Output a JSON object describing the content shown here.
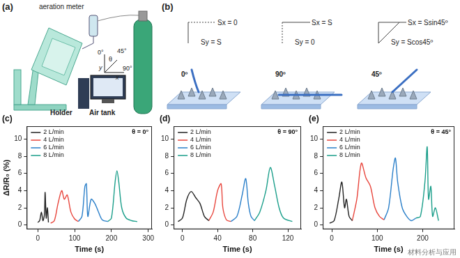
{
  "panel_a": {
    "label": "(a)",
    "aeration_meter": "aeration meter",
    "angle_0": "0°",
    "theta": "θ",
    "angle_45": "45°",
    "angle_90": "90°",
    "axis_y": "y",
    "axis_x": "x",
    "holder": "Holder",
    "air_tank": "Air tank"
  },
  "panel_b": {
    "label": "(b)",
    "columns": [
      {
        "sx": "Sx = 0",
        "sy": "Sy = S",
        "angle": "0º"
      },
      {
        "sx": "Sx = S",
        "sy": "Sy = 0",
        "angle": "90º"
      },
      {
        "sx": "Sx = Ssin45º",
        "sy": "Sy = Scos45º",
        "angle": "45º"
      }
    ]
  },
  "watermark": "材料分析与应用",
  "chart_data": [
    {
      "type": "line",
      "title": "(c)",
      "annotations": [
        "θ = 0°"
      ],
      "x_label": "Time (s)",
      "y_label": "ΔR/R₀ (%)",
      "xlim": [
        -30,
        310
      ],
      "xticks": [
        0,
        100,
        200,
        300
      ],
      "ylim": [
        -0.5,
        11.5
      ],
      "yticks": [
        0,
        2,
        4,
        6,
        8,
        10
      ],
      "grid": false,
      "legend": "upper left",
      "series": [
        {
          "name": "2 L/min",
          "color": "#222222",
          "x": [
            0,
            5,
            10,
            14,
            18,
            20,
            23,
            26,
            29
          ],
          "values": [
            0.3,
            0.5,
            1.5,
            0.5,
            1.2,
            3.8,
            0.8,
            2.0,
            0.3
          ]
        },
        {
          "name": "4 L/min",
          "color": "#e8453c",
          "x": [
            35,
            45,
            55,
            65,
            72,
            80,
            90,
            100,
            110
          ],
          "values": [
            0.2,
            0.5,
            2.5,
            4.0,
            3.0,
            3.5,
            1.5,
            0.7,
            0.4
          ]
        },
        {
          "name": "6 L/min",
          "color": "#2a7fc9",
          "x": [
            110,
            120,
            128,
            132,
            136,
            145,
            155,
            165,
            175,
            190
          ],
          "values": [
            0.4,
            1.0,
            4.5,
            4.8,
            1.0,
            3.0,
            2.5,
            1.5,
            0.6,
            0.4
          ]
        },
        {
          "name": "8 L/min",
          "color": "#1a9e8a",
          "x": [
            190,
            200,
            210,
            215,
            220,
            228,
            240,
            255,
            270
          ],
          "values": [
            0.4,
            0.8,
            5.0,
            6.3,
            5.0,
            2.0,
            0.8,
            0.5,
            0.4
          ]
        }
      ]
    },
    {
      "type": "line",
      "title": "(d)",
      "annotations": [
        "θ = 90°"
      ],
      "x_label": "Time (s)",
      "xlim": [
        -10,
        135
      ],
      "xticks": [
        0,
        40,
        80,
        120
      ],
      "ylim": [
        -0.5,
        11.5
      ],
      "yticks": [
        0,
        2,
        4,
        6,
        8,
        10
      ],
      "grid": false,
      "legend": "upper left",
      "series": [
        {
          "name": "2 L/min",
          "color": "#222222",
          "x": [
            -5,
            0,
            5,
            10,
            15,
            20,
            25,
            30
          ],
          "values": [
            0.4,
            0.8,
            3.0,
            3.9,
            3.2,
            2.5,
            1.0,
            0.5
          ]
        },
        {
          "name": "4 L/min",
          "color": "#e8453c",
          "x": [
            30,
            35,
            40,
            44,
            46,
            50,
            55
          ],
          "values": [
            0.5,
            1.5,
            4.0,
            4.8,
            2.0,
            0.6,
            0.4
          ]
        },
        {
          "name": "6 L/min",
          "color": "#2a7fc9",
          "x": [
            55,
            62,
            68,
            72,
            75,
            78,
            82
          ],
          "values": [
            0.4,
            1.0,
            3.5,
            5.4,
            2.5,
            1.0,
            0.5
          ]
        },
        {
          "name": "8 L/min",
          "color": "#1a9e8a",
          "x": [
            82,
            88,
            95,
            100,
            105,
            110,
            115,
            125
          ],
          "values": [
            0.5,
            1.5,
            4.0,
            6.7,
            4.5,
            2.0,
            0.8,
            0.4
          ]
        }
      ]
    },
    {
      "type": "line",
      "title": "(e)",
      "annotations": [
        "θ = 45°"
      ],
      "x_label": "Time (s)",
      "xlim": [
        -20,
        270
      ],
      "xticks": [
        0,
        100,
        200
      ],
      "ylim": [
        -0.5,
        11.5
      ],
      "yticks": [
        0,
        2,
        4,
        6,
        8,
        10
      ],
      "grid": false,
      "legend": "upper left",
      "series": [
        {
          "name": "2 L/min",
          "color": "#222222",
          "x": [
            -5,
            5,
            15,
            22,
            28,
            32,
            38,
            45
          ],
          "values": [
            0.2,
            0.5,
            3.0,
            5.0,
            2.0,
            3.0,
            1.0,
            0.5
          ]
        },
        {
          "name": "4 L/min",
          "color": "#e8453c",
          "x": [
            45,
            55,
            65,
            75,
            85,
            95,
            105,
            115
          ],
          "values": [
            0.5,
            3.0,
            7.2,
            5.5,
            4.5,
            2.0,
            1.0,
            0.6
          ]
        },
        {
          "name": "6 L/min",
          "color": "#2a7fc9",
          "x": [
            115,
            125,
            135,
            140,
            145,
            155,
            165,
            175,
            185
          ],
          "values": [
            0.6,
            2.0,
            6.5,
            7.8,
            5.0,
            2.0,
            1.0,
            0.5,
            0.8
          ]
        },
        {
          "name": "8 L/min",
          "color": "#1a9e8a",
          "x": [
            185,
            195,
            205,
            210,
            213,
            218,
            222,
            228,
            235
          ],
          "values": [
            0.8,
            1.0,
            5.0,
            9.1,
            3.0,
            4.5,
            1.0,
            2.0,
            0.5
          ]
        }
      ]
    }
  ]
}
